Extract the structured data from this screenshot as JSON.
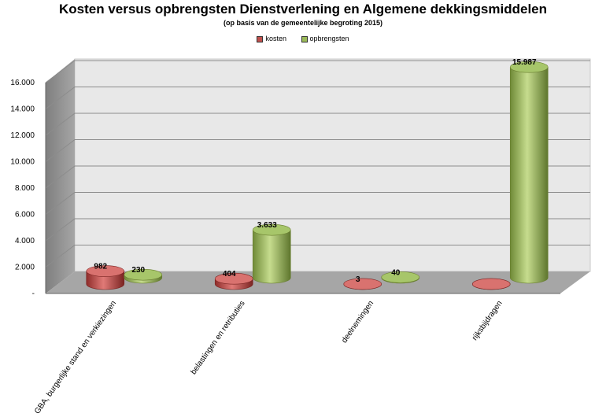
{
  "chart_data": {
    "type": "bar",
    "style": "3d-cylinder",
    "title": "Kosten versus opbrengsten Dienstverlening en Algemene dekkingsmiddelen",
    "subtitle": "(op basis van de gemeentelijke begroting 2015)",
    "categories": [
      "GBA, burgerlijke stand en verkiezingen",
      "belastingen en retributies",
      "deelnemingen",
      "rijksbijdragen"
    ],
    "series": [
      {
        "name": "kosten",
        "color": "#c0504d",
        "values": [
          982,
          404,
          3,
          1
        ],
        "labels": [
          "982",
          "404",
          "3",
          ""
        ]
      },
      {
        "name": "opbrengsten",
        "color": "#9bbb59",
        "values": [
          230,
          3633,
          40,
          15987
        ],
        "labels": [
          "230",
          "3.633",
          "40",
          "15.987"
        ]
      }
    ],
    "y_ticks": [
      0,
      2000,
      4000,
      6000,
      8000,
      10000,
      12000,
      14000,
      16000
    ],
    "y_tick_labels": [
      "-",
      "2.000",
      "4.000",
      "6.000",
      "8.000",
      "10.000",
      "12.000",
      "14.000",
      "16.000"
    ],
    "ylim": [
      0,
      16000
    ],
    "grid": true,
    "legend_position": "top-center"
  }
}
